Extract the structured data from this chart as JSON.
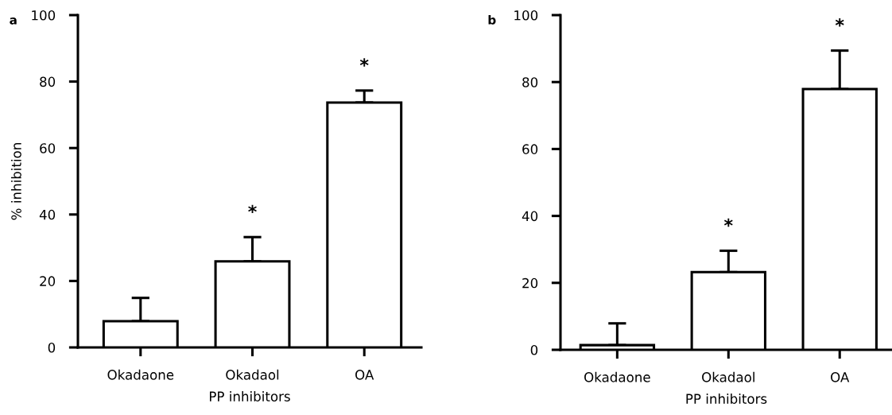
{
  "chart_data": [
    {
      "type": "bar",
      "annotations": [
        "a",
        "*",
        "*"
      ],
      "xlabel": "PP inhibitors",
      "ylabel": "% inhibition",
      "categories": [
        "Okadaone",
        "Okadaol",
        "OA"
      ],
      "series": [
        {
          "color": "#ffffff",
          "values": [
            7.9,
            25.9,
            73.7
          ],
          "errors": [
            [
              7.9,
              14.9
            ],
            [
              25.9,
              33.2
            ],
            [
              73.7,
              77.3
            ]
          ]
        }
      ],
      "ylim": [
        0,
        100
      ],
      "yticks": [
        0,
        20,
        40,
        60,
        80,
        100
      ],
      "grid": false,
      "legend": false
    },
    {
      "type": "bar",
      "annotations": [
        "b",
        "*",
        "*"
      ],
      "xlabel": "PP inhibitors",
      "categories": [
        "Okadaone",
        "Okadaol",
        "OA"
      ],
      "series": [
        {
          "color": "#ffffff",
          "values": [
            1.4,
            23.2,
            77.9
          ],
          "errors": [
            [
              1.4,
              7.9
            ],
            [
              23.2,
              29.6
            ],
            [
              77.9,
              89.4
            ]
          ]
        }
      ],
      "ylim": [
        0,
        100
      ],
      "yticks": [
        0,
        20,
        40,
        60,
        80,
        100
      ],
      "grid": false,
      "legend": false
    }
  ]
}
